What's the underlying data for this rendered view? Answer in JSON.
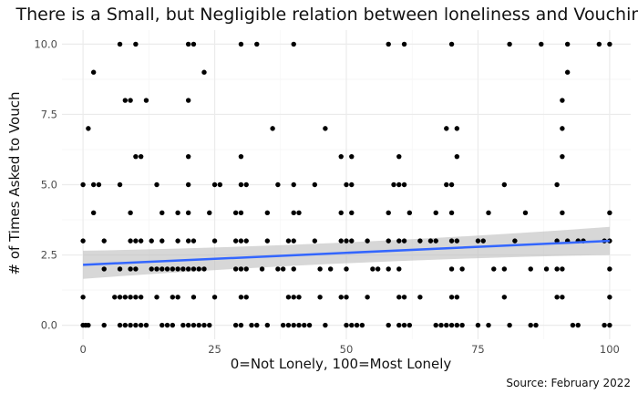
{
  "chart_data": {
    "type": "scatter",
    "title": "There is a Small, but Negligible relation between loneliness and Vouching",
    "xlabel": "0=Not Lonely, 100=Most Lonely",
    "ylabel": "# of Times Asked to Vouch",
    "caption": "Source: February 2022",
    "xlim": [
      -4,
      104
    ],
    "ylim": [
      -0.5,
      10.5
    ],
    "x_ticks": [
      0,
      25,
      50,
      75,
      100
    ],
    "x_tick_labels": [
      "0",
      "25",
      "50",
      "75",
      "100"
    ],
    "y_ticks": [
      0,
      2.5,
      5,
      7.5,
      10
    ],
    "y_tick_labels": [
      "0.0",
      "2.5",
      "5.0",
      "7.5",
      "10.0"
    ],
    "grid": true,
    "colors": {
      "point": "#000000",
      "trend_line": "#3366ff",
      "confidence_band": "#bdbdbd",
      "grid_major": "#ebebeb",
      "grid_minor": "#f5f5f5"
    },
    "points": [
      [
        0,
        0
      ],
      [
        0.5,
        0
      ],
      [
        1,
        0
      ],
      [
        4,
        0
      ],
      [
        7,
        0
      ],
      [
        8,
        0
      ],
      [
        9,
        0
      ],
      [
        10,
        0
      ],
      [
        11,
        0
      ],
      [
        12,
        0
      ],
      [
        15,
        0
      ],
      [
        16,
        0
      ],
      [
        17,
        0
      ],
      [
        19,
        0
      ],
      [
        20,
        0
      ],
      [
        21,
        0
      ],
      [
        22,
        0
      ],
      [
        23,
        0
      ],
      [
        24,
        0
      ],
      [
        29,
        0
      ],
      [
        30,
        0
      ],
      [
        32,
        0
      ],
      [
        33,
        0
      ],
      [
        35,
        0
      ],
      [
        38,
        0
      ],
      [
        39,
        0
      ],
      [
        40,
        0
      ],
      [
        41,
        0
      ],
      [
        42,
        0
      ],
      [
        43,
        0
      ],
      [
        46,
        0
      ],
      [
        50,
        0
      ],
      [
        51,
        0
      ],
      [
        52,
        0
      ],
      [
        53,
        0
      ],
      [
        58,
        0
      ],
      [
        60,
        0
      ],
      [
        61,
        0
      ],
      [
        62,
        0
      ],
      [
        67,
        0
      ],
      [
        68,
        0
      ],
      [
        69,
        0
      ],
      [
        70,
        0
      ],
      [
        71,
        0
      ],
      [
        72,
        0
      ],
      [
        75,
        0
      ],
      [
        77,
        0
      ],
      [
        81,
        0
      ],
      [
        85,
        0
      ],
      [
        86,
        0
      ],
      [
        93,
        0
      ],
      [
        94,
        0
      ],
      [
        99,
        0
      ],
      [
        100,
        0
      ],
      [
        0,
        1
      ],
      [
        6,
        1
      ],
      [
        7,
        1
      ],
      [
        8,
        1
      ],
      [
        9,
        1
      ],
      [
        10,
        1
      ],
      [
        11,
        1
      ],
      [
        14,
        1
      ],
      [
        17,
        1
      ],
      [
        18,
        1
      ],
      [
        21,
        1
      ],
      [
        25,
        1
      ],
      [
        30,
        1
      ],
      [
        31,
        1
      ],
      [
        39,
        1
      ],
      [
        40,
        1
      ],
      [
        41,
        1
      ],
      [
        45,
        1
      ],
      [
        49,
        1
      ],
      [
        50,
        1
      ],
      [
        54,
        1
      ],
      [
        60,
        1
      ],
      [
        61,
        1
      ],
      [
        64,
        1
      ],
      [
        70,
        1
      ],
      [
        71,
        1
      ],
      [
        80,
        1
      ],
      [
        90,
        1
      ],
      [
        91,
        1
      ],
      [
        100,
        1
      ],
      [
        4,
        2
      ],
      [
        7,
        2
      ],
      [
        9,
        2
      ],
      [
        10,
        2
      ],
      [
        13,
        2
      ],
      [
        14,
        2
      ],
      [
        15,
        2
      ],
      [
        16,
        2
      ],
      [
        17,
        2
      ],
      [
        18,
        2
      ],
      [
        19,
        2
      ],
      [
        20,
        2
      ],
      [
        21,
        2
      ],
      [
        22,
        2
      ],
      [
        23,
        2
      ],
      [
        29,
        2
      ],
      [
        30,
        2
      ],
      [
        31,
        2
      ],
      [
        34,
        2
      ],
      [
        37,
        2
      ],
      [
        38,
        2
      ],
      [
        40,
        2
      ],
      [
        45,
        2
      ],
      [
        47,
        2
      ],
      [
        50,
        2
      ],
      [
        55,
        2
      ],
      [
        56,
        2
      ],
      [
        58,
        2
      ],
      [
        60,
        2
      ],
      [
        70,
        2
      ],
      [
        72,
        2
      ],
      [
        78,
        2
      ],
      [
        80,
        2
      ],
      [
        85,
        2
      ],
      [
        88,
        2
      ],
      [
        90,
        2
      ],
      [
        91,
        2
      ],
      [
        100,
        2
      ],
      [
        0,
        3
      ],
      [
        4,
        3
      ],
      [
        9,
        3
      ],
      [
        10,
        3
      ],
      [
        11,
        3
      ],
      [
        13,
        3
      ],
      [
        15,
        3
      ],
      [
        18,
        3
      ],
      [
        20,
        3
      ],
      [
        21,
        3
      ],
      [
        25,
        3
      ],
      [
        29,
        3
      ],
      [
        30,
        3
      ],
      [
        31,
        3
      ],
      [
        35,
        3
      ],
      [
        39,
        3
      ],
      [
        40,
        3
      ],
      [
        44,
        3
      ],
      [
        49,
        3
      ],
      [
        50,
        3
      ],
      [
        51,
        3
      ],
      [
        54,
        3
      ],
      [
        58,
        3
      ],
      [
        60,
        3
      ],
      [
        61,
        3
      ],
      [
        64,
        3
      ],
      [
        66,
        3
      ],
      [
        67,
        3
      ],
      [
        70,
        3
      ],
      [
        71,
        3
      ],
      [
        75,
        3
      ],
      [
        76,
        3
      ],
      [
        82,
        3
      ],
      [
        90,
        3
      ],
      [
        92,
        3
      ],
      [
        94,
        3
      ],
      [
        95,
        3
      ],
      [
        99,
        3
      ],
      [
        100,
        3
      ],
      [
        2,
        4
      ],
      [
        9,
        4
      ],
      [
        15,
        4
      ],
      [
        18,
        4
      ],
      [
        20,
        4
      ],
      [
        24,
        4
      ],
      [
        29,
        4
      ],
      [
        30,
        4
      ],
      [
        35,
        4
      ],
      [
        40,
        4
      ],
      [
        41,
        4
      ],
      [
        49,
        4
      ],
      [
        51,
        4
      ],
      [
        58,
        4
      ],
      [
        62,
        4
      ],
      [
        67,
        4
      ],
      [
        70,
        4
      ],
      [
        77,
        4
      ],
      [
        84,
        4
      ],
      [
        91,
        4
      ],
      [
        100,
        4
      ],
      [
        0,
        5
      ],
      [
        2,
        5
      ],
      [
        3,
        5
      ],
      [
        7,
        5
      ],
      [
        14,
        5
      ],
      [
        20,
        5
      ],
      [
        25,
        5
      ],
      [
        26,
        5
      ],
      [
        30,
        5
      ],
      [
        31,
        5
      ],
      [
        37,
        5
      ],
      [
        40,
        5
      ],
      [
        44,
        5
      ],
      [
        50,
        5
      ],
      [
        51,
        5
      ],
      [
        59,
        5
      ],
      [
        60,
        5
      ],
      [
        61,
        5
      ],
      [
        69,
        5
      ],
      [
        70,
        5
      ],
      [
        80,
        5
      ],
      [
        90,
        5
      ],
      [
        10,
        6
      ],
      [
        11,
        6
      ],
      [
        20,
        6
      ],
      [
        30,
        6
      ],
      [
        49,
        6
      ],
      [
        51,
        6
      ],
      [
        60,
        6
      ],
      [
        71,
        6
      ],
      [
        91,
        6
      ],
      [
        1,
        7
      ],
      [
        36,
        7
      ],
      [
        46,
        7
      ],
      [
        69,
        7
      ],
      [
        71,
        7
      ],
      [
        91,
        7
      ],
      [
        8,
        8
      ],
      [
        9,
        8
      ],
      [
        12,
        8
      ],
      [
        20,
        8
      ],
      [
        91,
        8
      ],
      [
        2,
        9
      ],
      [
        23,
        9
      ],
      [
        92,
        9
      ],
      [
        7,
        10
      ],
      [
        10,
        10
      ],
      [
        20,
        10
      ],
      [
        21,
        10
      ],
      [
        30,
        10
      ],
      [
        33,
        10
      ],
      [
        40,
        10
      ],
      [
        58,
        10
      ],
      [
        61,
        10
      ],
      [
        70,
        10
      ],
      [
        81,
        10
      ],
      [
        87,
        10
      ],
      [
        92,
        10
      ],
      [
        98,
        10
      ],
      [
        100,
        10
      ]
    ],
    "trend": {
      "x_range": [
        0,
        100
      ],
      "y_at_x_min": 2.15,
      "y_at_x_max": 3.0,
      "ci_at_x_min": [
        1.65,
        2.65
      ],
      "ci_mid_x": 50,
      "ci_at_x_mid": [
        2.4,
        2.75
      ],
      "ci_at_x_max": [
        2.5,
        3.5
      ]
    }
  }
}
